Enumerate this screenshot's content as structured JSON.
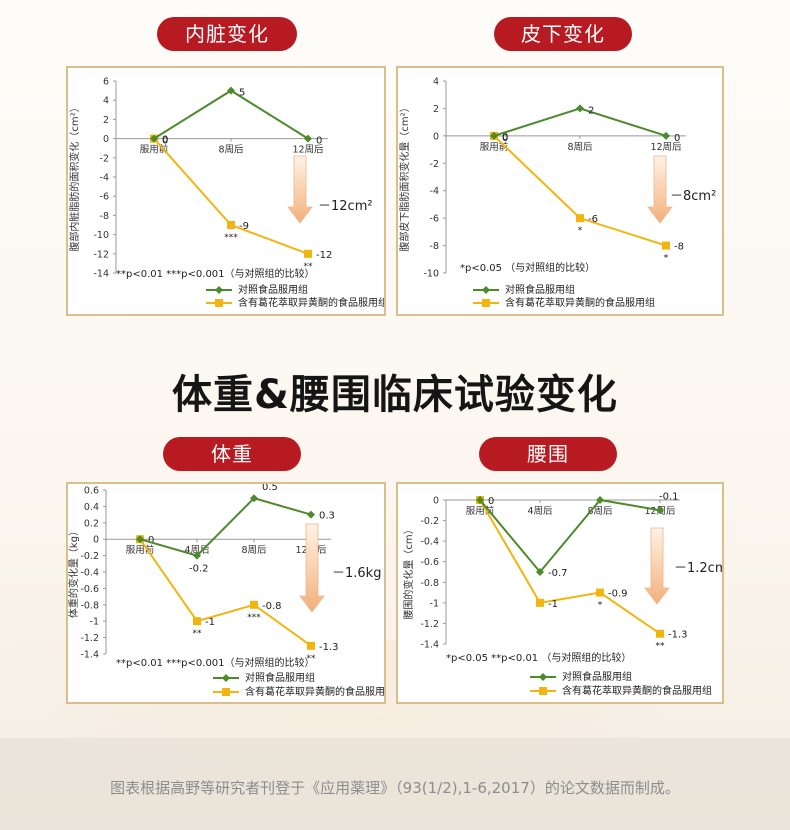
{
  "heading": "体重&腰围临床试验变化",
  "footer": "图表根据高野等研究者刊登于《应用薬理》（93(1/2),1-6,2017）的论文数据而制成。",
  "colors": {
    "control": "#4c8a2b",
    "treatment": "#f2b50f",
    "pill": "#b71a21",
    "border": "#d8bf8c",
    "arrow": "#f3b07a"
  },
  "panels": {
    "visceral": {
      "pill": "内脏变化",
      "change": "－12cm²"
    },
    "subcutaneous": {
      "pill": "皮下变化",
      "change": "－8cm²"
    },
    "weight": {
      "pill": "体重",
      "change": "－1.6kg"
    },
    "waist": {
      "pill": "腰围",
      "change": "－1.2cm"
    }
  },
  "chart_data": [
    {
      "type": "line",
      "ylabel": "腹部内脏脂肪的面积变化（cm²）",
      "categories": [
        "服用前",
        "8周后",
        "12周后"
      ],
      "ylim": [
        -14,
        6
      ],
      "yticks": [
        6,
        4,
        2,
        0,
        -2,
        -4,
        -6,
        -8,
        -10,
        -12,
        -14
      ],
      "series": [
        {
          "name": "对照食品服用组",
          "values": [
            0,
            5,
            0
          ],
          "labels": [
            "0",
            "5",
            "0"
          ]
        },
        {
          "name": "含有葛花萃取异黄酮的食品服用组",
          "values": [
            0,
            -9,
            -12
          ],
          "labels": [
            "0",
            "-9",
            "-12"
          ],
          "sig": [
            "",
            "***",
            "**"
          ]
        }
      ],
      "note": "**p<0.01 ***p<0.001（与对照组的比较）"
    },
    {
      "type": "line",
      "ylabel": "腹部皮下脂肪面积变化量（cm²）",
      "categories": [
        "服用前",
        "8周后",
        "12周后"
      ],
      "ylim": [
        -10,
        4
      ],
      "yticks": [
        4,
        2,
        0,
        -2,
        -4,
        -6,
        -8,
        -10
      ],
      "series": [
        {
          "name": "对照食品服用组",
          "values": [
            0,
            2,
            0
          ],
          "labels": [
            "0",
            "2",
            "0"
          ]
        },
        {
          "name": "含有葛花萃取异黄酮的食品服用组",
          "values": [
            0,
            -6,
            -8
          ],
          "labels": [
            "0",
            "-6",
            "-8"
          ],
          "sig": [
            "",
            "*",
            "*"
          ]
        }
      ],
      "note": "*p<0.05 （与对照组的比较）"
    },
    {
      "type": "line",
      "ylabel": "体重的变化量（kg）",
      "categories": [
        "服用前",
        "4周后",
        "8周后",
        "12周后"
      ],
      "ylim": [
        -1.4,
        0.6
      ],
      "yticks": [
        "0.6",
        "0.4",
        "0.2",
        "0",
        "-0.2",
        "-0.4",
        "-0.6",
        "-0.8",
        "-1",
        "-1.2",
        "-1.4"
      ],
      "series": [
        {
          "name": "对照食品服用组",
          "values": [
            0,
            -0.2,
            0.5,
            0.3
          ],
          "labels": [
            "",
            "-0.2",
            "0.5",
            "0.3"
          ]
        },
        {
          "name": "含有葛花萃取异黄酮的食品服用组",
          "values": [
            0,
            -1,
            -0.8,
            -1.3
          ],
          "labels": [
            "0",
            "-1",
            "-0.8",
            "-1.3"
          ],
          "sig": [
            "",
            "**",
            "***",
            "**"
          ]
        }
      ],
      "note": "**p<0.01 ***p<0.001（与对照组的比较）"
    },
    {
      "type": "line",
      "ylabel": "腰围的变化量（cm）",
      "categories": [
        "服用前",
        "4周后",
        "8周后",
        "12周后"
      ],
      "ylim": [
        -1.4,
        0
      ],
      "yticks": [
        "0",
        "-0.2",
        "-0.4",
        "-0.6",
        "-0.8",
        "-1",
        "-1.2",
        "-1.4"
      ],
      "series": [
        {
          "name": "对照食品服用组",
          "values": [
            0,
            -0.7,
            0,
            -0.1
          ],
          "labels": [
            "",
            "-0.7",
            "",
            "-0.1"
          ]
        },
        {
          "name": "含有葛花萃取异黄酮的食品服用组",
          "values": [
            0,
            -1,
            -0.9,
            -1.3
          ],
          "labels": [
            "0",
            "-1",
            "-0.9",
            "-1.3"
          ],
          "sig": [
            "",
            "",
            "*",
            "**"
          ]
        }
      ],
      "note": "*p<0.05 **p<0.01 （与对照组的比较）"
    }
  ]
}
